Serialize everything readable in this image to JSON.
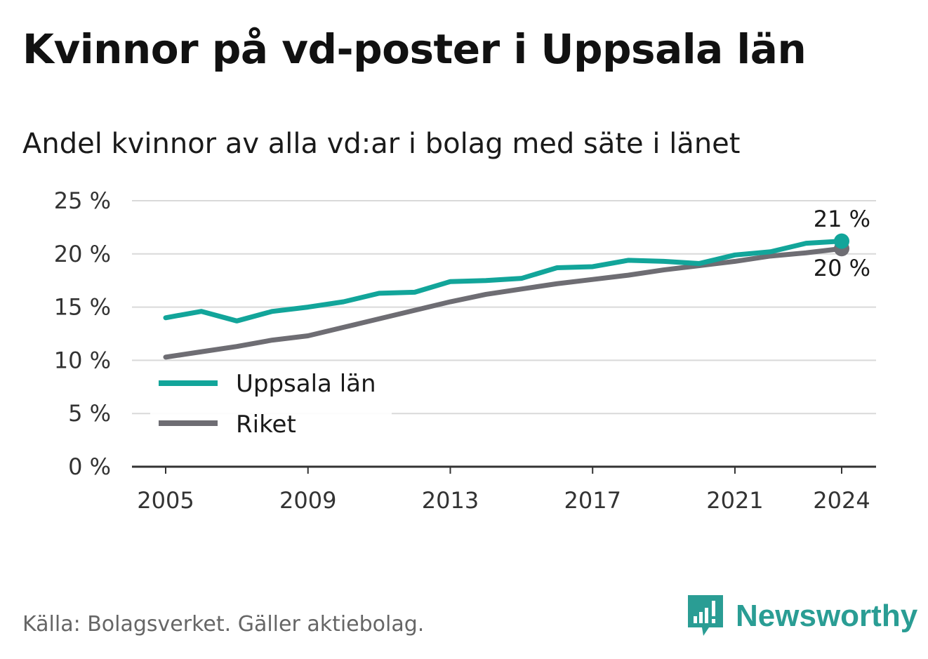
{
  "title": "Kvinnor på vd-poster i Uppsala län",
  "subtitle": "Andel kvinnor av alla vd:ar i bolag med säte i länet",
  "source": "Källa: Bolagsverket. Gäller aktiebolag.",
  "brand": "Newsworthy",
  "brand_icon": "bar-chart-speech-bubble-icon",
  "chart_data": {
    "type": "line",
    "x": [
      2005,
      2006,
      2007,
      2008,
      2009,
      2010,
      2011,
      2012,
      2013,
      2014,
      2015,
      2016,
      2017,
      2018,
      2019,
      2020,
      2021,
      2022,
      2023,
      2024
    ],
    "series": [
      {
        "name": "Uppsala län",
        "color": "#12a59a",
        "values": [
          14.0,
          14.6,
          13.7,
          14.6,
          15.0,
          15.5,
          16.3,
          16.4,
          17.4,
          17.5,
          17.7,
          18.7,
          18.8,
          19.4,
          19.3,
          19.1,
          19.9,
          20.2,
          21.0,
          21.2
        ],
        "end_label": "21 %"
      },
      {
        "name": "Riket",
        "color": "#6e6d73",
        "values": [
          10.3,
          10.8,
          11.3,
          11.9,
          12.3,
          13.1,
          13.9,
          14.7,
          15.5,
          16.2,
          16.7,
          17.2,
          17.6,
          18.0,
          18.5,
          18.9,
          19.3,
          19.8,
          20.1,
          20.5
        ],
        "end_label": "20 %"
      }
    ],
    "x_ticks": [
      "2005",
      "2009",
      "2013",
      "2017",
      "2021",
      "2024"
    ],
    "y_ticks": [
      "0 %",
      "5 %",
      "10 %",
      "15 %",
      "20 %",
      "25 %"
    ],
    "ylim": [
      0,
      25
    ],
    "xlabel": "",
    "ylabel": "",
    "grid": true,
    "legend_position": "bottom-left"
  }
}
